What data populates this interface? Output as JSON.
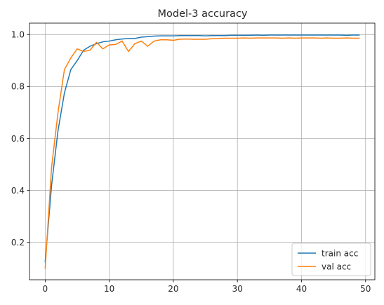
{
  "chart_data": {
    "type": "line",
    "title": "Model-3 accuracy",
    "xlabel": "",
    "ylabel": "",
    "xlim": [
      -2.45,
      51.45
    ],
    "ylim": [
      0.056,
      1.044
    ],
    "xticks": [
      0,
      10,
      20,
      30,
      40,
      50
    ],
    "yticks": [
      0.2,
      0.4,
      0.6,
      0.8,
      1.0
    ],
    "ytick_labels": [
      "0.2",
      "0.4",
      "0.6",
      "0.8",
      "1.0"
    ],
    "grid": true,
    "legend_position": "lower-right",
    "series": [
      {
        "name": "train acc",
        "color": "#1f77b4",
        "x": [
          0,
          1,
          2,
          3,
          4,
          5,
          6,
          7,
          8,
          9,
          10,
          11,
          12,
          13,
          14,
          15,
          16,
          17,
          18,
          19,
          20,
          21,
          22,
          23,
          24,
          25,
          26,
          27,
          28,
          29,
          30,
          31,
          32,
          33,
          34,
          35,
          36,
          37,
          38,
          39,
          40,
          41,
          42,
          43,
          44,
          45,
          46,
          47,
          48,
          49
        ],
        "values": [
          0.125,
          0.42,
          0.63,
          0.775,
          0.865,
          0.9,
          0.94,
          0.955,
          0.965,
          0.972,
          0.975,
          0.98,
          0.983,
          0.985,
          0.985,
          0.99,
          0.992,
          0.994,
          0.995,
          0.995,
          0.995,
          0.996,
          0.996,
          0.996,
          0.996,
          0.995,
          0.996,
          0.996,
          0.996,
          0.997,
          0.997,
          0.997,
          0.997,
          0.998,
          0.997,
          0.998,
          0.998,
          0.998,
          0.998,
          0.998,
          0.998,
          0.998,
          0.998,
          0.998,
          0.998,
          0.998,
          0.998,
          0.997,
          0.998,
          0.998
        ]
      },
      {
        "name": "val acc",
        "color": "#ff7f0e",
        "x": [
          0,
          1,
          2,
          3,
          4,
          5,
          6,
          7,
          8,
          9,
          10,
          11,
          12,
          13,
          14,
          15,
          16,
          17,
          18,
          19,
          20,
          21,
          22,
          23,
          24,
          25,
          26,
          27,
          28,
          29,
          30,
          31,
          32,
          33,
          34,
          35,
          36,
          37,
          38,
          39,
          40,
          41,
          42,
          43,
          44,
          45,
          46,
          47,
          48,
          49
        ],
        "values": [
          0.1,
          0.49,
          0.7,
          0.865,
          0.91,
          0.945,
          0.935,
          0.94,
          0.97,
          0.945,
          0.96,
          0.962,
          0.975,
          0.935,
          0.965,
          0.975,
          0.955,
          0.975,
          0.98,
          0.98,
          0.978,
          0.982,
          0.983,
          0.982,
          0.982,
          0.982,
          0.984,
          0.985,
          0.986,
          0.986,
          0.986,
          0.987,
          0.986,
          0.987,
          0.987,
          0.987,
          0.987,
          0.986,
          0.987,
          0.986,
          0.987,
          0.987,
          0.987,
          0.986,
          0.987,
          0.986,
          0.986,
          0.987,
          0.986,
          0.986
        ]
      }
    ]
  }
}
